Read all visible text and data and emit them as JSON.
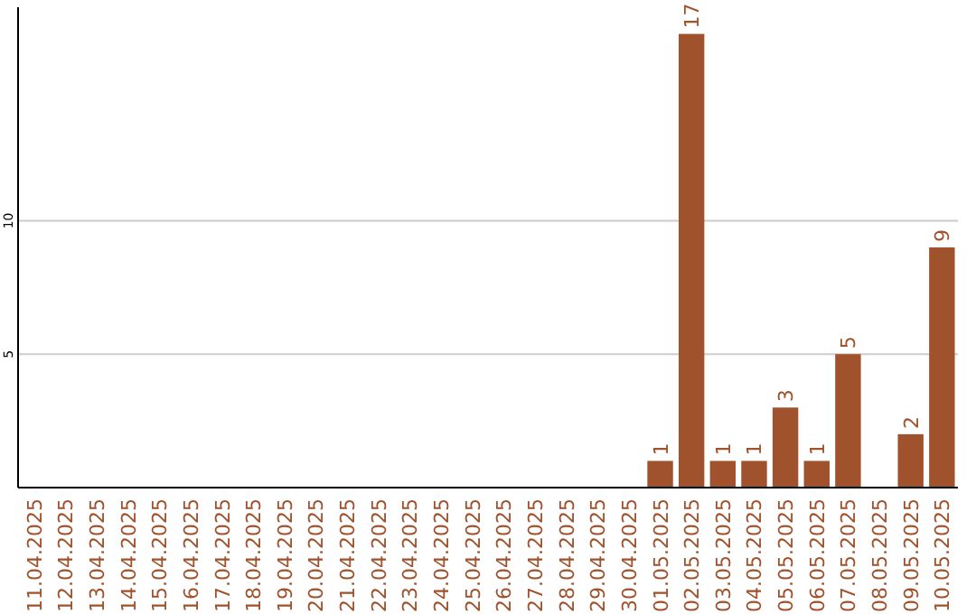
{
  "chart_data": {
    "type": "bar",
    "categories": [
      "11.04.2025",
      "12.04.2025",
      "13.04.2025",
      "14.04.2025",
      "15.04.2025",
      "16.04.2025",
      "17.04.2025",
      "18.04.2025",
      "19.04.2025",
      "20.04.2025",
      "21.04.2025",
      "22.04.2025",
      "23.04.2025",
      "24.04.2025",
      "25.04.2025",
      "26.04.2025",
      "27.04.2025",
      "28.04.2025",
      "29.04.2025",
      "30.04.2025",
      "01.05.2025",
      "02.05.2025",
      "03.05.2025",
      "04.05.2025",
      "05.05.2025",
      "06.05.2025",
      "07.05.2025",
      "08.05.2025",
      "09.05.2025",
      "10.05.2025"
    ],
    "values": [
      0,
      0,
      0,
      0,
      0,
      0,
      0,
      0,
      0,
      0,
      0,
      0,
      0,
      0,
      0,
      0,
      0,
      0,
      0,
      0,
      1,
      17,
      1,
      1,
      3,
      1,
      5,
      0,
      2,
      9
    ],
    "value_labels": [
      null,
      null,
      null,
      null,
      null,
      null,
      null,
      null,
      null,
      null,
      null,
      null,
      null,
      null,
      null,
      null,
      null,
      null,
      null,
      null,
      "1",
      "17",
      "1",
      "1",
      "3",
      "1",
      "5",
      null,
      "2",
      "9"
    ],
    "color": "#a0522d",
    "ylim": [
      0,
      18
    ],
    "yticks": [
      5,
      10
    ],
    "grid": "y"
  }
}
